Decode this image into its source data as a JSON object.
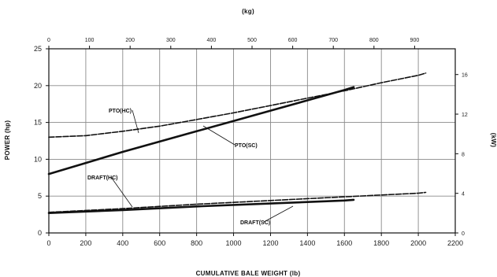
{
  "chart_data": {
    "type": "line",
    "xlabel": "CUMULATIVE BALE WEIGHT (lb)",
    "x2label": "(kg)",
    "ylabel": "POWER (hp)",
    "y2label": "(kW)",
    "xlim": [
      0,
      2200
    ],
    "ylim": [
      0,
      25
    ],
    "x2lim": [
      0,
      1000
    ],
    "y2lim": [
      0,
      18.6
    ],
    "xticks": [
      "0",
      "200",
      "400",
      "600",
      "800",
      "1000",
      "1200",
      "1400",
      "1600",
      "1800",
      "2000",
      "2200"
    ],
    "yticks": [
      "0",
      "5",
      "10",
      "15",
      "20",
      "25"
    ],
    "x2ticks": [
      "0",
      "100",
      "200",
      "300",
      "400",
      "500",
      "600",
      "700",
      "800",
      "900"
    ],
    "y2ticks": [
      "0",
      "4",
      "8",
      "12",
      "16"
    ],
    "grid": true,
    "series": [
      {
        "name": "PTO(HC)",
        "style": "dashed",
        "x": [
          0,
          200,
          400,
          600,
          800,
          1000,
          1200,
          1400,
          1600,
          1800,
          2000,
          2040
        ],
        "y": [
          13.0,
          13.2,
          13.8,
          14.5,
          15.4,
          16.3,
          17.3,
          18.3,
          19.3,
          20.4,
          21.4,
          21.7
        ]
      },
      {
        "name": "PTO(SC)",
        "style": "solid",
        "x": [
          0,
          200,
          400,
          600,
          800,
          1000,
          1200,
          1400,
          1600,
          1650
        ],
        "y": [
          8.0,
          9.5,
          11.0,
          12.4,
          13.8,
          15.2,
          16.6,
          18.0,
          19.4,
          19.8
        ]
      },
      {
        "name": "DRAFT(HC)",
        "style": "dashed",
        "x": [
          0,
          400,
          800,
          1200,
          1600,
          2000,
          2040
        ],
        "y": [
          2.8,
          3.3,
          3.9,
          4.4,
          4.9,
          5.4,
          5.5
        ]
      },
      {
        "name": "DRAFT(SC)",
        "style": "solid",
        "x": [
          0,
          400,
          800,
          1200,
          1600,
          1650
        ],
        "y": [
          2.7,
          3.1,
          3.6,
          4.0,
          4.4,
          4.5
        ]
      }
    ],
    "annotations": [
      "PTO(HC)",
      "PTO(SC)",
      "DRAFT(HC)",
      "DRAFT(SC)"
    ]
  }
}
